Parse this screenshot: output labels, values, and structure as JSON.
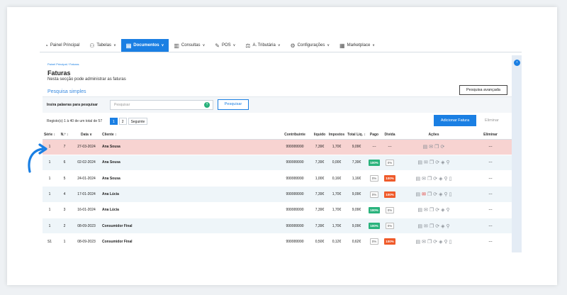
{
  "nav": [
    {
      "label": "Painel Principal",
      "icon": "dashboard-icon",
      "glyph": "◔",
      "caret": false,
      "active": false
    },
    {
      "label": "Tabelas",
      "icon": "users-icon",
      "glyph": "⚇",
      "caret": true,
      "active": false
    },
    {
      "label": "Documentos",
      "icon": "document-icon",
      "glyph": "▤",
      "caret": true,
      "active": true
    },
    {
      "label": "Consultas",
      "icon": "chart-icon",
      "glyph": "▥",
      "caret": true,
      "active": false
    },
    {
      "label": "POS",
      "icon": "pos-icon",
      "glyph": "✎",
      "caret": true,
      "active": false
    },
    {
      "label": "A. Tributária",
      "icon": "tax-icon",
      "glyph": "⚖",
      "caret": true,
      "active": false
    },
    {
      "label": "Configurações",
      "icon": "settings-icon",
      "glyph": "⚙",
      "caret": true,
      "active": false
    },
    {
      "label": "Marketplace",
      "icon": "marketplace-icon",
      "glyph": "▦",
      "caret": true,
      "active": false
    }
  ],
  "breadcrumb": "Painel Principal  /  Faturas",
  "title": "Faturas",
  "subtitle": "Nesta secção pode administrar as faturas",
  "advanced_search": "Pesquisa avançada",
  "simple_search": {
    "title": "Pesquisa simples",
    "label": "Insira palavras para pesquisar",
    "placeholder": "Pesquisar",
    "badge": "?",
    "button": "Pesquisar"
  },
  "records_text": "Registo(s) 1 à 40 de um total de 57",
  "pagination": [
    "1",
    "2",
    "Seguinte"
  ],
  "add_button": "Adicionar Fatura",
  "delete_button": "Eliminar",
  "columns": [
    "Série ↕",
    "N.º ↕",
    "Data ∨",
    "Cliente ↕",
    "Contribuinte",
    "líquido",
    "Impostos",
    "Total Liq. ↕",
    "Pago",
    "Divida",
    "Ações",
    "Eliminar"
  ],
  "rows": [
    {
      "serie": "1",
      "num": "7",
      "date": "27-03-2024",
      "client": "Ana Sousa",
      "nif": "999999990",
      "liquido": "7,39€",
      "impostos": "1,70€",
      "total": "9,09€",
      "pago": "---",
      "divida": "---",
      "style": "highlight",
      "pago_style": "text",
      "divida_style": "text",
      "eliminar": "---",
      "actions": 4
    },
    {
      "serie": "1",
      "num": "6",
      "date": "02-02-2024",
      "client": "Ana Sousa",
      "nif": "999999990",
      "liquido": "7,39€",
      "impostos": "0,00€",
      "total": "7,39€",
      "pago": "100%",
      "divida": "0%",
      "style": "alt",
      "pago_style": "green",
      "divida_style": "outline",
      "eliminar": "---",
      "actions": 6
    },
    {
      "serie": "1",
      "num": "5",
      "date": "24-01-2024",
      "client": "Ana Sousa",
      "nif": "999999990",
      "liquido": "1,00€",
      "impostos": "0,16€",
      "total": "1,16€",
      "pago": "0%",
      "divida": "100%",
      "style": "plain",
      "pago_style": "outline",
      "divida_style": "red",
      "eliminar": "---",
      "actions": 7
    },
    {
      "serie": "1",
      "num": "4",
      "date": "17-01-2024",
      "client": "Ana Lúcia",
      "nif": "999999990",
      "liquido": "7,39€",
      "impostos": "1,70€",
      "total": "9,09€",
      "pago": "0%",
      "divida": "100%",
      "style": "alt",
      "pago_style": "outline",
      "divida_style": "red",
      "eliminar": "---",
      "actions": 7
    },
    {
      "serie": "1",
      "num": "3",
      "date": "16-01-2024",
      "client": "Ana Lúcia",
      "nif": "999999990",
      "liquido": "7,39€",
      "impostos": "1,70€",
      "total": "9,09€",
      "pago": "100%",
      "divida": "0%",
      "style": "plain",
      "pago_style": "green",
      "divida_style": "outline",
      "eliminar": "---",
      "actions": 6
    },
    {
      "serie": "1",
      "num": "2",
      "date": "08-09-2023",
      "client": "Consumidor Final",
      "nif": "999999990",
      "liquido": "7,39€",
      "impostos": "1,70€",
      "total": "9,09€",
      "pago": "100%",
      "divida": "0%",
      "style": "alt",
      "pago_style": "green",
      "divida_style": "outline",
      "eliminar": "---",
      "actions": 6
    },
    {
      "serie": "S1",
      "num": "1",
      "date": "08-09-2023",
      "client": "Consumidor Final",
      "nif": "999999990",
      "liquido": "0,50€",
      "impostos": "0,12€",
      "total": "0,62€",
      "pago": "0%",
      "divida": "100%",
      "style": "plain",
      "pago_style": "outline",
      "divida_style": "red",
      "eliminar": "---",
      "actions": 7
    }
  ],
  "action_icons": [
    "pdf-icon",
    "email-icon",
    "copy-icon",
    "convert-icon",
    "layers-icon",
    "search-icon",
    "document-icon"
  ],
  "action_glyphs": [
    "▤",
    "✉",
    "❐",
    "⟳",
    "◈",
    "⚲",
    "▯"
  ],
  "colors": {
    "accent": "#1a7fe3",
    "highlight_row": "#f7d3d1",
    "paid_green": "#2ab37d",
    "debt_red": "#ef5a2a"
  }
}
